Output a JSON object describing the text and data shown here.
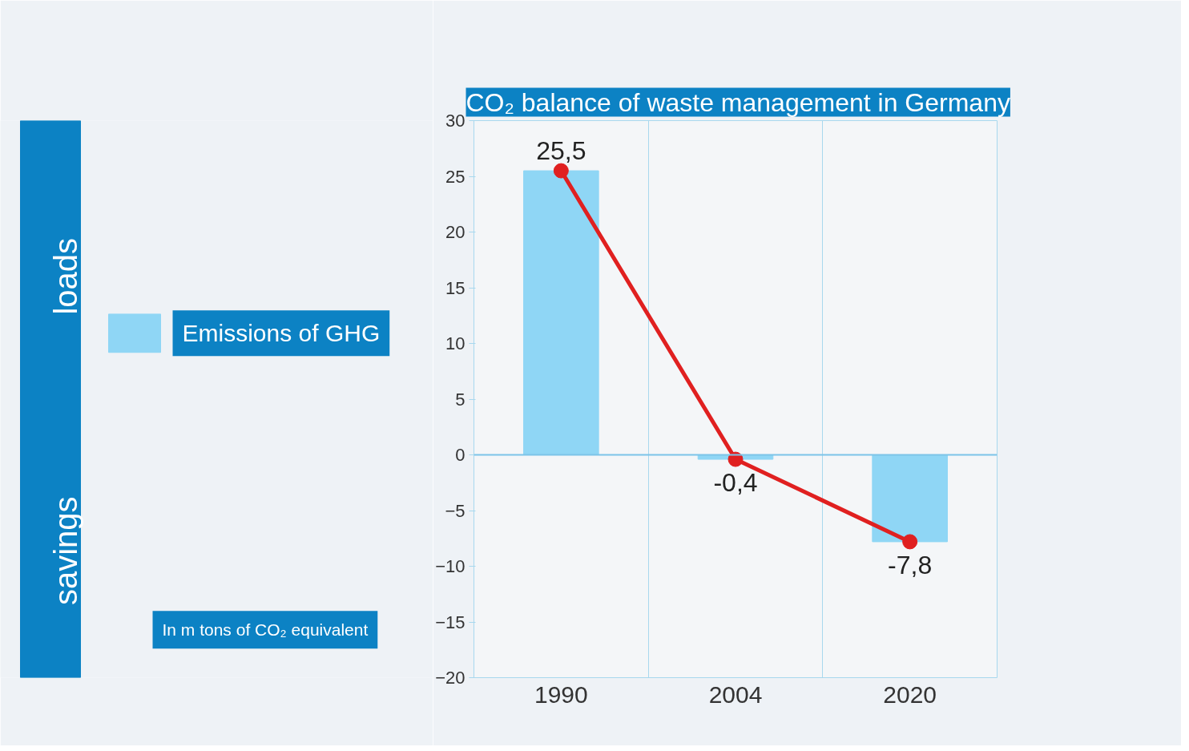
{
  "chart_data": {
    "type": "bar",
    "title": "CO₂ balance of waste management in Germany",
    "categories": [
      "1990",
      "2004",
      "2020"
    ],
    "series": [
      {
        "name": "Emissions of GHG",
        "color": "#8fd6f5",
        "values": [
          25.5,
          -0.4,
          -7.8
        ]
      },
      {
        "type": "line",
        "color": "#e02020",
        "values": [
          25.5,
          -0.4,
          -7.8
        ],
        "value_labels": [
          "25,5",
          "-0,4",
          "-7,8"
        ],
        "marker": "circle",
        "line_style": "solid"
      }
    ],
    "ylim": [
      -20,
      30
    ],
    "yticks": [
      -20,
      -15,
      -10,
      -5,
      0,
      5,
      10,
      15,
      20,
      25,
      30
    ],
    "grid": "x",
    "legend": "left",
    "ref_lines": [
      {
        "axis": "y",
        "value": 0,
        "color": "#7cc4e8"
      }
    ],
    "annotations": [
      "In m tons of CO₂ equivalent",
      "loads",
      "savings"
    ]
  }
}
